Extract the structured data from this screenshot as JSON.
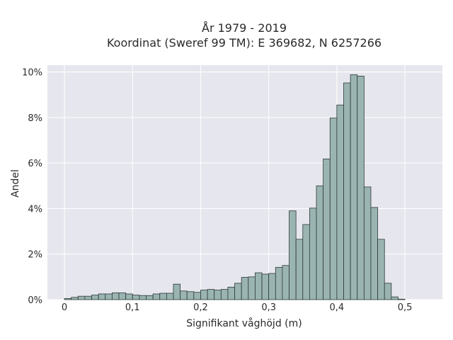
{
  "chart_data": {
    "type": "bar",
    "title": "År 1979 - 2019",
    "subtitle": "Koordinat (Sweref 99 TM): E 369682, N 6257266",
    "xlabel": "Signifikant våghöjd (m)",
    "ylabel": "Andel",
    "xlim": [
      -0.025,
      0.555
    ],
    "ylim": [
      0,
      10.3
    ],
    "x_ticks": [
      0,
      0.1,
      0.2,
      0.3,
      0.4,
      0.5
    ],
    "x_tick_labels": [
      "0",
      "0,1",
      "0,2",
      "0,3",
      "0,4",
      "0,5"
    ],
    "y_ticks": [
      0,
      2,
      4,
      6,
      8,
      10
    ],
    "y_tick_labels": [
      "0%",
      "2%",
      "4%",
      "6%",
      "8%",
      "10%"
    ],
    "grid": true,
    "bin_width": 0.01,
    "bin_start": 0.0,
    "values": [
      0.05,
      0.1,
      0.15,
      0.15,
      0.2,
      0.25,
      0.25,
      0.3,
      0.3,
      0.25,
      0.2,
      0.18,
      0.18,
      0.25,
      0.28,
      0.28,
      0.68,
      0.38,
      0.35,
      0.32,
      0.42,
      0.45,
      0.42,
      0.45,
      0.55,
      0.72,
      0.98,
      1.0,
      1.18,
      1.12,
      1.15,
      1.42,
      1.5,
      3.9,
      2.65,
      3.3,
      4.02,
      5.0,
      6.18,
      7.98,
      8.55,
      9.52,
      9.88,
      9.82,
      4.95,
      4.05,
      2.65,
      0.72,
      0.12,
      0.02
    ],
    "colors": {
      "bar_fill": "#9ab4b2",
      "bar_edge": "#2e3a38",
      "plot_bg": "#e6e6ee",
      "grid": "#ffffff"
    }
  }
}
